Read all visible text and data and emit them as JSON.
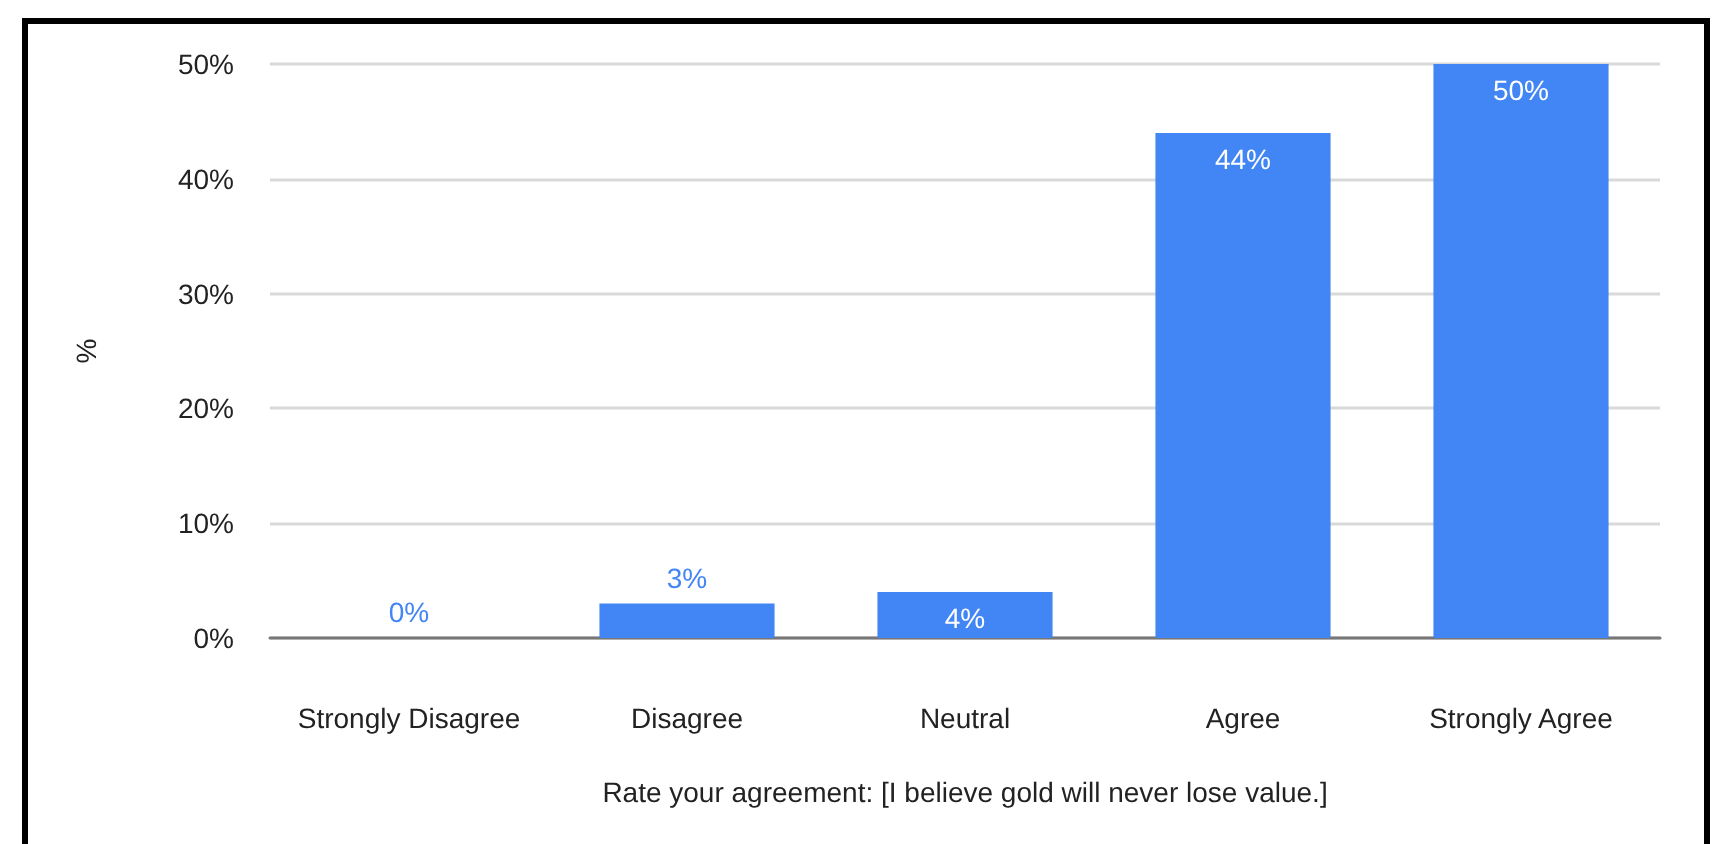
{
  "chart_data": {
    "type": "bar",
    "categories": [
      "Strongly Disagree",
      "Disagree",
      "Neutral",
      "Agree",
      "Strongly Agree"
    ],
    "values": [
      0,
      3,
      4,
      44,
      50
    ],
    "color": "#4285f4",
    "value_labels": [
      "0%",
      "3%",
      "4%",
      "44%",
      "50%"
    ],
    "xlabel": "Rate your agreement: [I believe gold will never lose value.]",
    "ylabel": "%",
    "ylim": [
      0,
      50
    ],
    "yticks": [
      {
        "value": 0,
        "label": "0%"
      },
      {
        "value": 10,
        "label": "10%"
      },
      {
        "value": 20,
        "label": "20%"
      },
      {
        "value": 30,
        "label": "30%"
      },
      {
        "value": 40,
        "label": "40%"
      },
      {
        "value": 50,
        "label": "50%"
      }
    ],
    "grid": "y"
  }
}
